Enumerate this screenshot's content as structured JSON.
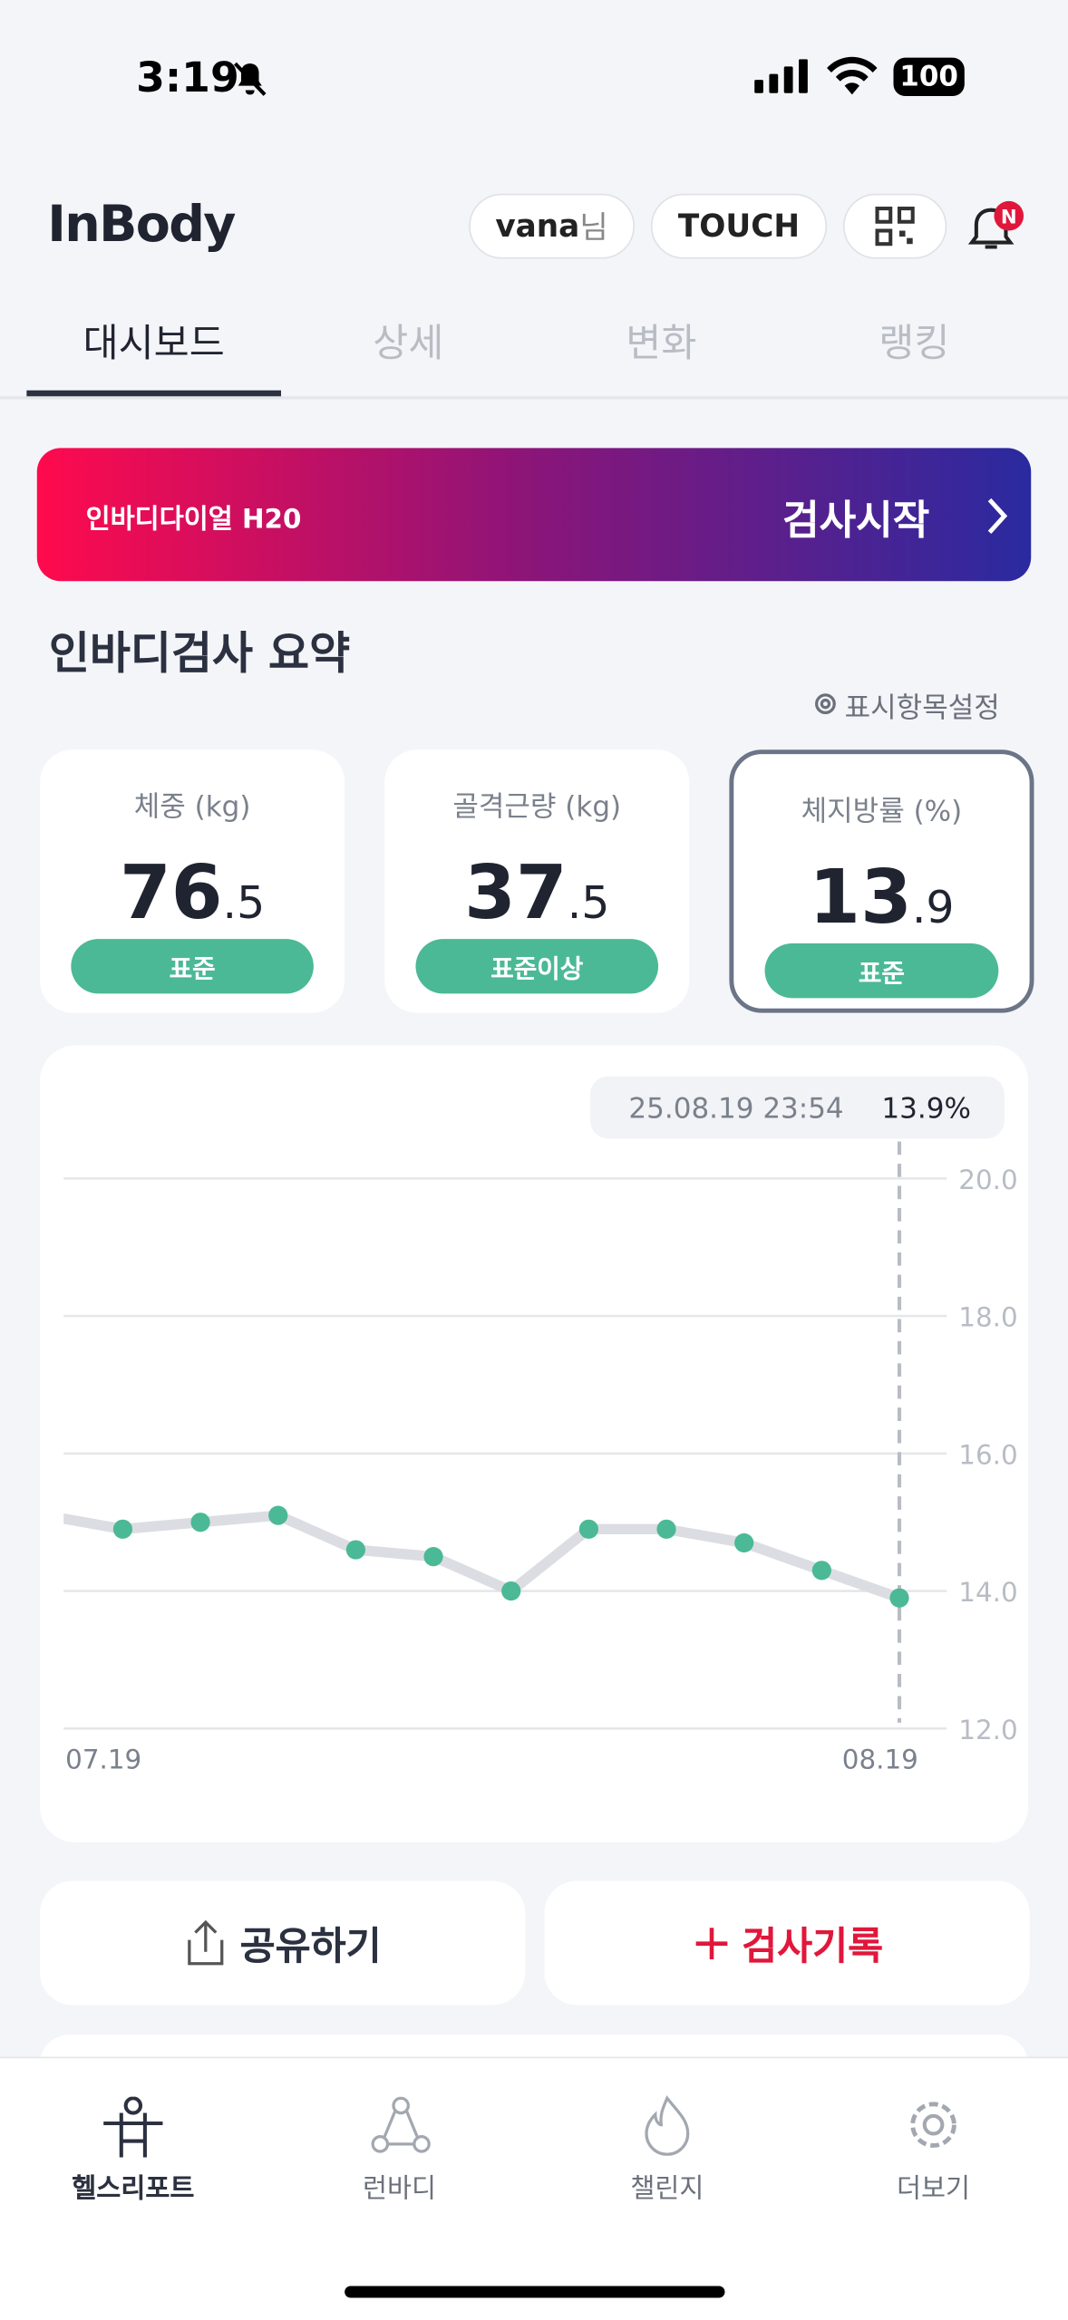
{
  "status": {
    "time": "3:19",
    "battery": "100"
  },
  "header": {
    "logo": "InBody",
    "user": "vana",
    "user_suffix": "님",
    "touch": "TOUCH"
  },
  "tabs": [
    "대시보드",
    "상세",
    "변화",
    "랭킹"
  ],
  "banner": {
    "device": "인바디다이얼 H20",
    "action": "검사시작"
  },
  "summary": {
    "title": "인바디검사 요약",
    "settings": "표시항목설정",
    "cards": [
      {
        "label": "체중 (kg)",
        "int": "76",
        "dec": ".5",
        "status": "표준"
      },
      {
        "label": "골격근량 (kg)",
        "int": "37",
        "dec": ".5",
        "status": "표준이상"
      },
      {
        "label": "체지방률 (%)",
        "int": "13",
        "dec": ".9",
        "status": "표준"
      }
    ]
  },
  "chart_data": {
    "type": "line",
    "tooltip_date": "25.08.19 23:54",
    "tooltip_value": "13.9%",
    "categories": [
      null,
      "07.19",
      null,
      null,
      null,
      null,
      null,
      null,
      null,
      null,
      null,
      "08.19"
    ],
    "series": [
      {
        "name": "체지방률",
        "color": "#4bb995",
        "values": [
          15.1,
          14.9,
          15.0,
          15.1,
          14.6,
          14.5,
          14.0,
          14.9,
          14.9,
          14.7,
          14.3,
          13.9
        ]
      }
    ],
    "ylim": [
      12,
      20
    ],
    "yticks": [
      {
        "value": 12,
        "label": "12.0"
      },
      {
        "value": 14,
        "label": "14.0"
      },
      {
        "value": 16,
        "label": "16.0"
      },
      {
        "value": 18,
        "label": "18.0"
      },
      {
        "value": 20,
        "label": "20.0"
      }
    ],
    "grid": true
  },
  "buttons": {
    "share": "공유하기",
    "record": "검사기록"
  },
  "nav": [
    "헬스리포트",
    "런바디",
    "챌린지",
    "더보기"
  ]
}
